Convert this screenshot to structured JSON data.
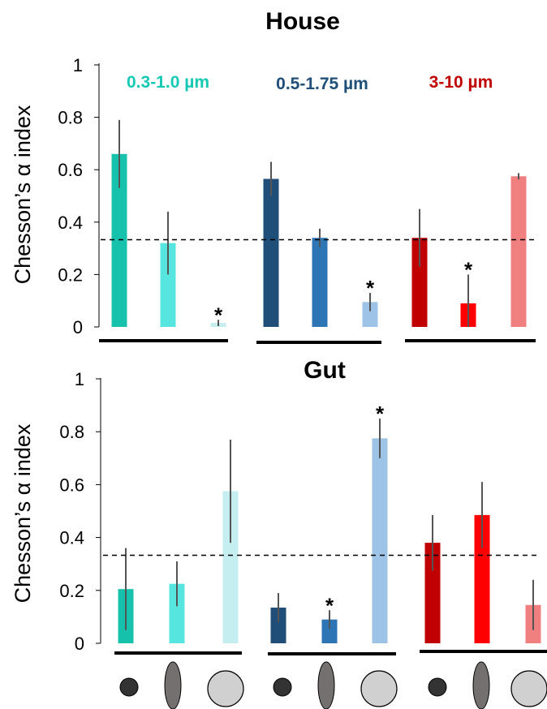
{
  "chart_data": [
    {
      "type": "bar",
      "title": "House",
      "ylabel": "Chesson’s α index",
      "ylim": [
        0,
        1
      ],
      "yticks": [
        "0",
        "0.2",
        "0.4",
        "0.6",
        "0.8",
        "1"
      ],
      "reference_line": 0.333,
      "groups": [
        {
          "label": "0.3-1.0 µm",
          "label_color": "#17c9b3",
          "bars": [
            {
              "shape": "sphere",
              "value": 0.66,
              "error": 0.13,
              "color": "#17c2ad",
              "significant": false
            },
            {
              "shape": "rod",
              "value": 0.32,
              "error": 0.12,
              "color": "#56e6df",
              "significant": false
            },
            {
              "shape": "large-sphere",
              "value": 0.015,
              "error": 0.012,
              "color": "#c4eef0",
              "significant": true
            }
          ]
        },
        {
          "label": "0.5-1.75 µm",
          "label_color": "#1f4e79",
          "bars": [
            {
              "shape": "sphere",
              "value": 0.565,
              "error": 0.065,
              "color": "#1f4e79",
              "significant": false
            },
            {
              "shape": "rod",
              "value": 0.34,
              "error": 0.035,
              "color": "#2e75b6",
              "significant": false
            },
            {
              "shape": "large-sphere",
              "value": 0.095,
              "error": 0.035,
              "color": "#9dc3e6",
              "significant": true
            }
          ]
        },
        {
          "label": "3-10 µm",
          "label_color": "#c00000",
          "bars": [
            {
              "shape": "sphere",
              "value": 0.34,
              "error": 0.11,
              "color": "#c00000",
              "significant": false
            },
            {
              "shape": "rod",
              "value": 0.09,
              "error": 0.11,
              "color": "#ff0000",
              "significant": true
            },
            {
              "shape": "large-sphere",
              "value": 0.575,
              "error": 0.012,
              "color": "#f08080",
              "significant": false
            }
          ]
        }
      ]
    },
    {
      "type": "bar",
      "title": "Gut",
      "ylabel": "Chesson’s α index",
      "ylim": [
        0,
        1
      ],
      "yticks": [
        "0",
        "0.2",
        "0.4",
        "0.6",
        "0.8",
        "1"
      ],
      "reference_line": 0.333,
      "groups": [
        {
          "label": "",
          "label_color": "#17c9b3",
          "bars": [
            {
              "shape": "sphere",
              "value": 0.205,
              "error": 0.155,
              "color": "#17c2ad",
              "significant": false
            },
            {
              "shape": "rod",
              "value": 0.225,
              "error": 0.085,
              "color": "#56e6df",
              "significant": false
            },
            {
              "shape": "large-sphere",
              "value": 0.575,
              "error": 0.195,
              "color": "#c4eef0",
              "significant": false
            }
          ]
        },
        {
          "label": "",
          "label_color": "#1f4e79",
          "bars": [
            {
              "shape": "sphere",
              "value": 0.135,
              "error": 0.055,
              "color": "#1f4e79",
              "significant": false
            },
            {
              "shape": "rod",
              "value": 0.09,
              "error": 0.035,
              "color": "#2e75b6",
              "significant": true
            },
            {
              "shape": "large-sphere",
              "value": 0.775,
              "error": 0.075,
              "color": "#9dc3e6",
              "significant": true
            }
          ]
        },
        {
          "label": "",
          "label_color": "#c00000",
          "bars": [
            {
              "shape": "sphere",
              "value": 0.38,
              "error": 0.105,
              "color": "#c00000",
              "significant": false
            },
            {
              "shape": "rod",
              "value": 0.485,
              "error": 0.125,
              "color": "#ff0000",
              "significant": false
            },
            {
              "shape": "large-sphere",
              "value": 0.145,
              "error": 0.095,
              "color": "#f08080",
              "significant": false
            }
          ]
        }
      ]
    }
  ],
  "significance_marker": "*",
  "particle_icons": [
    "sphere-icon",
    "rod-icon",
    "large-sphere-icon"
  ]
}
